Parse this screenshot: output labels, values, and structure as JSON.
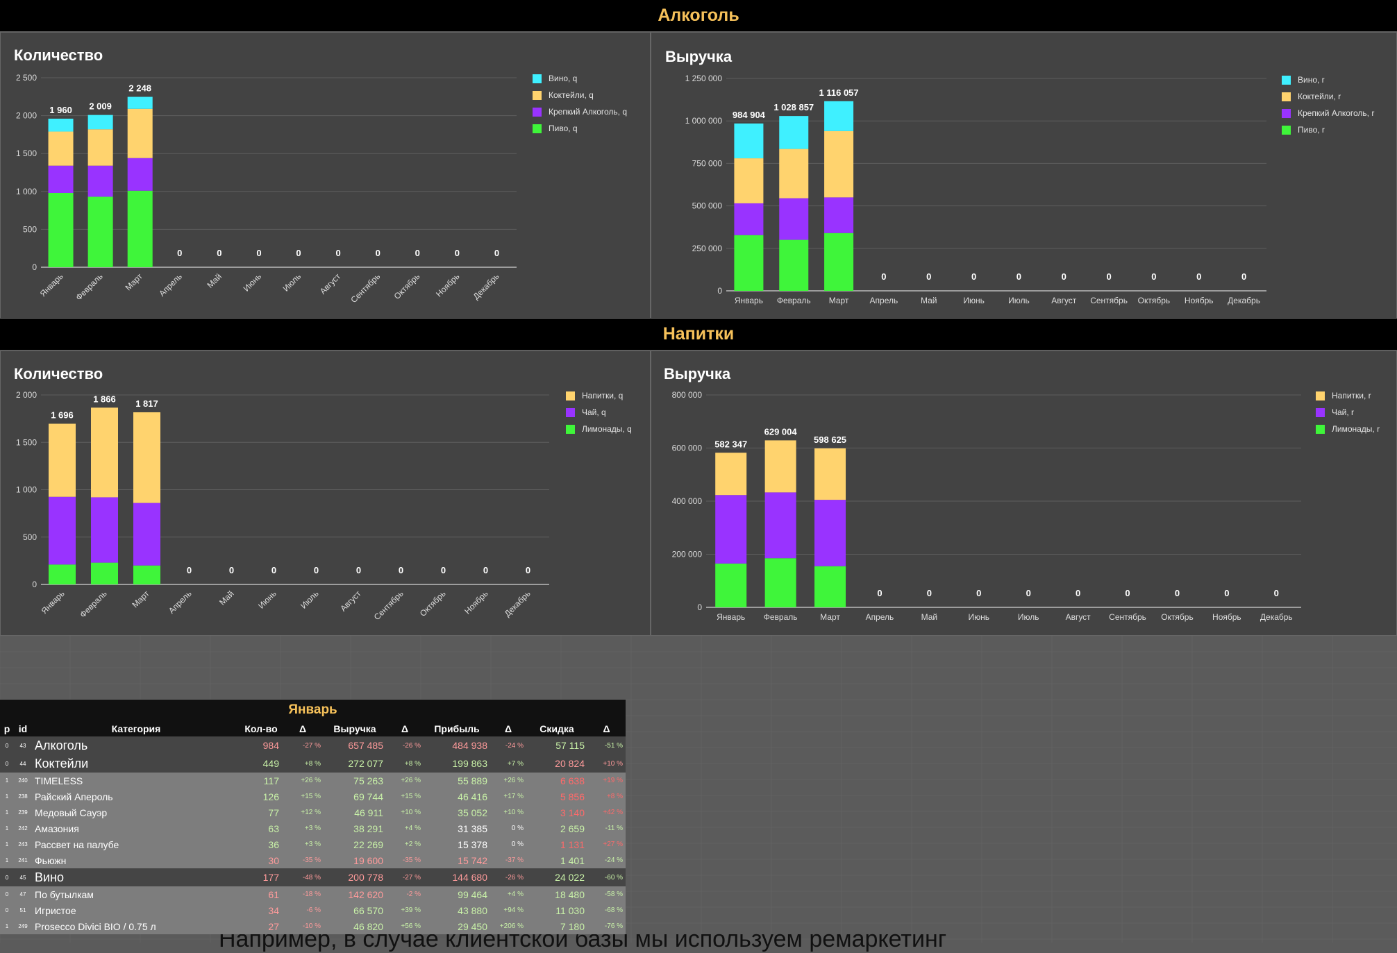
{
  "sections": [
    {
      "title": "Алкоголь"
    },
    {
      "title": "Напитки"
    }
  ],
  "chart_data": [
    {
      "type": "bar",
      "stacked": true,
      "title": "Количество",
      "categories": [
        "Январь",
        "Февраль",
        "Март",
        "Апрель",
        "Май",
        "Июнь",
        "Июль",
        "Август",
        "Сентябрь",
        "Октябрь",
        "Ноябрь",
        "Декабрь"
      ],
      "series": [
        {
          "name": "Пиво, q",
          "color": "#3ff53a",
          "values": [
            980,
            930,
            1010,
            0,
            0,
            0,
            0,
            0,
            0,
            0,
            0,
            0
          ]
        },
        {
          "name": "Крепкий Алкоголь, q",
          "color": "#9933ff",
          "values": [
            360,
            410,
            430,
            0,
            0,
            0,
            0,
            0,
            0,
            0,
            0,
            0
          ]
        },
        {
          "name": "Коктейли, q",
          "color": "#ffd36e",
          "values": [
            450,
            480,
            650,
            0,
            0,
            0,
            0,
            0,
            0,
            0,
            0,
            0
          ]
        },
        {
          "name": "Вино, q",
          "color": "#3ff0ff",
          "values": [
            170,
            189,
            158,
            0,
            0,
            0,
            0,
            0,
            0,
            0,
            0,
            0
          ]
        }
      ],
      "totals": [
        "1 960",
        "2 009",
        "2 248",
        "0",
        "0",
        "0",
        "0",
        "0",
        "0",
        "0",
        "0",
        "0"
      ],
      "ylim": [
        0,
        2500
      ],
      "yticks": [
        "0",
        "500",
        "1 000",
        "1 500",
        "2 000",
        "2 500"
      ],
      "legend_position": "right",
      "grid": true
    },
    {
      "type": "bar",
      "stacked": true,
      "title": "Выручка",
      "categories": [
        "Январь",
        "Февраль",
        "Март",
        "Апрель",
        "Май",
        "Июнь",
        "Июль",
        "Август",
        "Сентябрь",
        "Октябрь",
        "Ноябрь",
        "Декабрь"
      ],
      "series": [
        {
          "name": "Пиво, r",
          "color": "#3ff53a",
          "values": [
            328000,
            300000,
            340000,
            0,
            0,
            0,
            0,
            0,
            0,
            0,
            0,
            0
          ]
        },
        {
          "name": "Крепкий Алкоголь, r",
          "color": "#9933ff",
          "values": [
            187000,
            245000,
            210000,
            0,
            0,
            0,
            0,
            0,
            0,
            0,
            0,
            0
          ]
        },
        {
          "name": "Коктейли, r",
          "color": "#ffd36e",
          "values": [
            265000,
            290000,
            390000,
            0,
            0,
            0,
            0,
            0,
            0,
            0,
            0,
            0
          ]
        },
        {
          "name": "Вино, r",
          "color": "#3ff0ff",
          "values": [
            204904,
            193857,
            176057,
            0,
            0,
            0,
            0,
            0,
            0,
            0,
            0,
            0
          ]
        }
      ],
      "totals": [
        "984 904",
        "1 028 857",
        "1 116 057",
        "0",
        "0",
        "0",
        "0",
        "0",
        "0",
        "0",
        "0",
        "0"
      ],
      "ylim": [
        0,
        1250000
      ],
      "yticks": [
        "0",
        "250 000",
        "500 000",
        "750 000",
        "1 000 000",
        "1 250 000"
      ],
      "legend_position": "right",
      "grid": true
    },
    {
      "type": "bar",
      "stacked": true,
      "title": "Количество",
      "categories": [
        "Январь",
        "Февраль",
        "Март",
        "Апрель",
        "Май",
        "Июнь",
        "Июль",
        "Август",
        "Сентябрь",
        "Октябрь",
        "Ноябрь",
        "Декабрь"
      ],
      "series": [
        {
          "name": "Лимонады, q",
          "color": "#3ff53a",
          "values": [
            210,
            230,
            200,
            0,
            0,
            0,
            0,
            0,
            0,
            0,
            0,
            0
          ]
        },
        {
          "name": "Чай, q",
          "color": "#9933ff",
          "values": [
            715,
            690,
            660,
            0,
            0,
            0,
            0,
            0,
            0,
            0,
            0,
            0
          ]
        },
        {
          "name": "Напитки, q",
          "color": "#ffd36e",
          "values": [
            771,
            946,
            957,
            0,
            0,
            0,
            0,
            0,
            0,
            0,
            0,
            0
          ]
        }
      ],
      "totals": [
        "1 696",
        "1 866",
        "1 817",
        "0",
        "0",
        "0",
        "0",
        "0",
        "0",
        "0",
        "0",
        "0"
      ],
      "ylim": [
        0,
        2000
      ],
      "yticks": [
        "0",
        "500",
        "1 000",
        "1 500",
        "2 000"
      ],
      "legend_position": "right",
      "grid": true
    },
    {
      "type": "bar",
      "stacked": true,
      "title": "Выручка",
      "categories": [
        "Январь",
        "Февраль",
        "Март",
        "Апрель",
        "Май",
        "Июнь",
        "Июль",
        "Август",
        "Сентябрь",
        "Октябрь",
        "Ноябрь",
        "Декабрь"
      ],
      "series": [
        {
          "name": "Лимонады, r",
          "color": "#3ff53a",
          "values": [
            165000,
            185000,
            155000,
            0,
            0,
            0,
            0,
            0,
            0,
            0,
            0,
            0
          ]
        },
        {
          "name": "Чай, r",
          "color": "#9933ff",
          "values": [
            258000,
            248000,
            250000,
            0,
            0,
            0,
            0,
            0,
            0,
            0,
            0,
            0
          ]
        },
        {
          "name": "Напитки, r",
          "color": "#ffd36e",
          "values": [
            159347,
            196004,
            193625,
            0,
            0,
            0,
            0,
            0,
            0,
            0,
            0,
            0
          ]
        }
      ],
      "totals": [
        "582 347",
        "629 004",
        "598 625",
        "0",
        "0",
        "0",
        "0",
        "0",
        "0",
        "0",
        "0",
        "0"
      ],
      "ylim": [
        0,
        800000
      ],
      "yticks": [
        "0",
        "200 000",
        "400 000",
        "600 000",
        "800 000"
      ],
      "legend_position": "right",
      "grid": true
    }
  ],
  "table": {
    "month": "Январь",
    "columns": [
      "p",
      "id",
      "Категория",
      "Кол-во",
      "Δ",
      "Выручка",
      "Δ",
      "Прибыль",
      "Δ",
      "Скидка",
      "Δ"
    ],
    "rows": [
      {
        "p": "0",
        "id": "43",
        "name": "Алкоголь",
        "qty": "984",
        "dq": "-27 %",
        "rev": "657 485",
        "dr": "-26 %",
        "profit": "484 938",
        "dp": "-24 %",
        "disc": "57 115",
        "dd": "-51 %",
        "level": 0,
        "qc": "red",
        "dqc": "red",
        "rc": "red",
        "drc": "red",
        "pc": "red",
        "dpc": "red",
        "dc": "green",
        "ddc": "green"
      },
      {
        "p": "0",
        "id": "44",
        "name": "Коктейли",
        "qty": "449",
        "dq": "+8 %",
        "rev": "272 077",
        "dr": "+8 %",
        "profit": "199 863",
        "dp": "+7 %",
        "disc": "20 824",
        "dd": "+10 %",
        "level": 0,
        "qc": "green",
        "dqc": "green",
        "rc": "green",
        "drc": "green",
        "pc": "green",
        "dpc": "green",
        "dc": "red",
        "ddc": "red"
      },
      {
        "p": "1",
        "id": "240",
        "name": "TIMELESS",
        "qty": "117",
        "dq": "+26 %",
        "rev": "75 263",
        "dr": "+26 %",
        "profit": "55 889",
        "dp": "+26 %",
        "disc": "6 638",
        "dd": "+19 %",
        "level": 1,
        "qc": "green",
        "dqc": "green",
        "rc": "green",
        "drc": "green",
        "pc": "green",
        "dpc": "green",
        "dc": "redtext",
        "ddc": "redtext"
      },
      {
        "p": "1",
        "id": "238",
        "name": "Райский Апероль",
        "qty": "126",
        "dq": "+15 %",
        "rev": "69 744",
        "dr": "+15 %",
        "profit": "46 416",
        "dp": "+17 %",
        "disc": "5 856",
        "dd": "+8 %",
        "level": 1,
        "qc": "green",
        "dqc": "green",
        "rc": "green",
        "drc": "green",
        "pc": "green",
        "dpc": "green",
        "dc": "redtext",
        "ddc": "redtext"
      },
      {
        "p": "1",
        "id": "239",
        "name": "Медовый Сауэр",
        "qty": "77",
        "dq": "+12 %",
        "rev": "46 911",
        "dr": "+10 %",
        "profit": "35 052",
        "dp": "+10 %",
        "disc": "3 140",
        "dd": "+42 %",
        "level": 1,
        "qc": "green",
        "dqc": "green",
        "rc": "green",
        "drc": "green",
        "pc": "green",
        "dpc": "green",
        "dc": "redtext",
        "ddc": "redtext"
      },
      {
        "p": "1",
        "id": "242",
        "name": "Амазония",
        "qty": "63",
        "dq": "+3 %",
        "rev": "38 291",
        "dr": "+4 %",
        "profit": "31 385",
        "dp": "0 %",
        "disc": "2 659",
        "dd": "-11 %",
        "level": 1,
        "qc": "green",
        "dqc": "green",
        "rc": "green",
        "drc": "green",
        "pc": "white",
        "dpc": "white",
        "dc": "green",
        "ddc": "green"
      },
      {
        "p": "1",
        "id": "243",
        "name": "Рассвет на палубе",
        "qty": "36",
        "dq": "+3 %",
        "rev": "22 269",
        "dr": "+2 %",
        "profit": "15 378",
        "dp": "0 %",
        "disc": "1 131",
        "dd": "+27 %",
        "level": 1,
        "qc": "green",
        "dqc": "green",
        "rc": "green",
        "drc": "green",
        "pc": "white",
        "dpc": "white",
        "dc": "redtext",
        "ddc": "redtext"
      },
      {
        "p": "1",
        "id": "241",
        "name": "Фьюжн",
        "qty": "30",
        "dq": "-35 %",
        "rev": "19 600",
        "dr": "-35 %",
        "profit": "15 742",
        "dp": "-37 %",
        "disc": "1 401",
        "dd": "-24 %",
        "level": 1,
        "qc": "red",
        "dqc": "red",
        "rc": "red",
        "drc": "red",
        "pc": "red",
        "dpc": "red",
        "dc": "green",
        "ddc": "green"
      },
      {
        "p": "0",
        "id": "45",
        "name": "Вино",
        "qty": "177",
        "dq": "-48 %",
        "rev": "200 778",
        "dr": "-27 %",
        "profit": "144 680",
        "dp": "-26 %",
        "disc": "24 022",
        "dd": "-60 %",
        "level": 0,
        "qc": "red",
        "dqc": "red",
        "rc": "red",
        "drc": "red",
        "pc": "red",
        "dpc": "red",
        "dc": "green",
        "ddc": "green"
      },
      {
        "p": "0",
        "id": "47",
        "name": "По бутылкам",
        "qty": "61",
        "dq": "-18 %",
        "rev": "142 620",
        "dr": "-2 %",
        "profit": "99 464",
        "dp": "+4 %",
        "disc": "18 480",
        "dd": "-58 %",
        "level": 1,
        "qc": "red",
        "dqc": "red",
        "rc": "red",
        "drc": "red",
        "pc": "green",
        "dpc": "green",
        "dc": "green",
        "ddc": "green"
      },
      {
        "p": "0",
        "id": "51",
        "name": "Игристое",
        "qty": "34",
        "dq": "-6 %",
        "rev": "66 570",
        "dr": "+39 %",
        "profit": "43 880",
        "dp": "+94 %",
        "disc": "11 030",
        "dd": "-68 %",
        "level": 1,
        "qc": "red",
        "dqc": "red",
        "rc": "green",
        "drc": "green",
        "pc": "green",
        "dpc": "green",
        "dc": "green",
        "ddc": "green"
      },
      {
        "p": "1",
        "id": "249",
        "name": "Prosecco Divici BIO / 0.75 л",
        "qty": "27",
        "dq": "-10 %",
        "rev": "46 820",
        "dr": "+56 %",
        "profit": "29 450",
        "dp": "+206 %",
        "disc": "7 180",
        "dd": "-76 %",
        "level": 1,
        "qc": "red",
        "dqc": "red",
        "rc": "green",
        "drc": "green",
        "pc": "green",
        "dpc": "green",
        "dc": "green",
        "ddc": "green"
      }
    ]
  },
  "caption_partial": "Например, в случае клиентской базы мы используем ремаркетинг"
}
